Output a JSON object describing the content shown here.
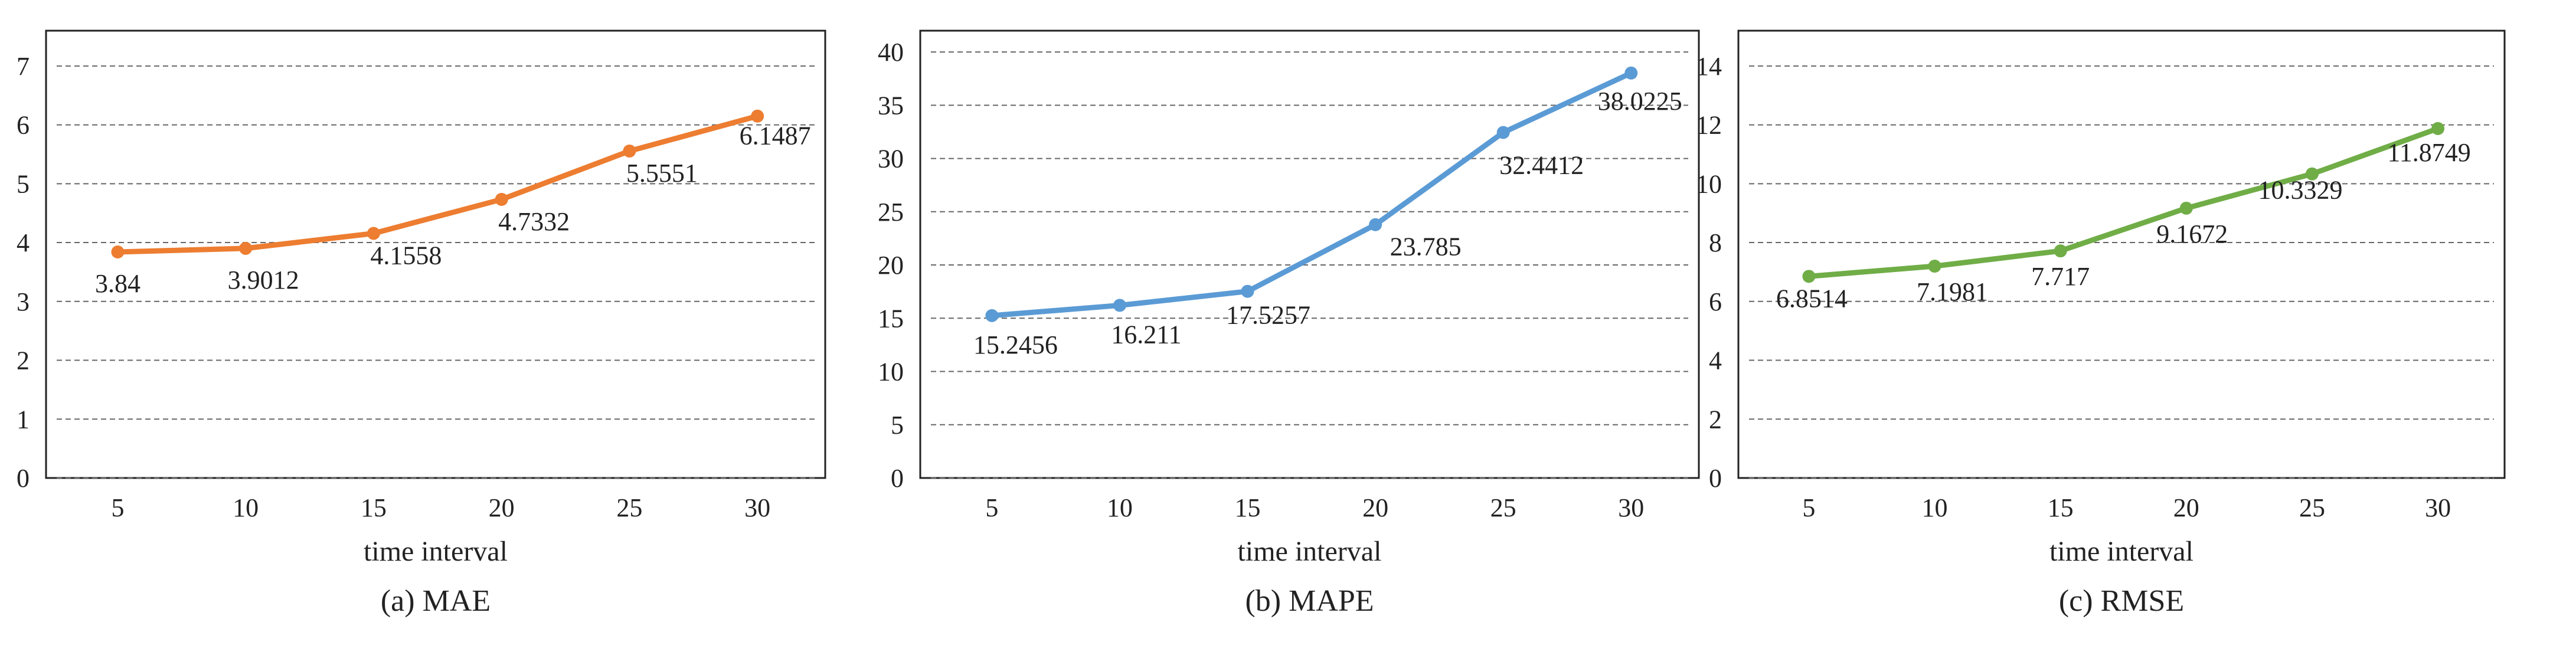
{
  "chart_data": [
    {
      "type": "line",
      "caption": "(a)  MAE",
      "xlabel": "time interval",
      "ylabel": "",
      "color": "#ed7d31",
      "x": [
        5,
        10,
        15,
        20,
        25,
        30
      ],
      "values": [
        3.84,
        3.9012,
        4.1558,
        4.7332,
        5.5551,
        6.1487
      ],
      "data_labels": [
        "3.84",
        "3.9012",
        "4.1558",
        "4.7332",
        "5.5551",
        "6.1487"
      ],
      "x_ticks": [
        "5",
        "10",
        "15",
        "20",
        "25",
        "30"
      ],
      "y_ticks": [
        0,
        1,
        2,
        3,
        4,
        5,
        6,
        7
      ],
      "ylim": [
        0,
        7.6
      ],
      "grid": "horizontal dashed",
      "legend": "none"
    },
    {
      "type": "line",
      "caption": "(b)  MAPE",
      "xlabel": "time interval",
      "ylabel": "",
      "color": "#5b9bd5",
      "x": [
        5,
        10,
        15,
        20,
        25,
        30
      ],
      "values": [
        15.2456,
        16.211,
        17.5257,
        23.785,
        32.4412,
        38.0225
      ],
      "data_labels": [
        "15.2456",
        "16.211",
        "17.5257",
        "23.785",
        "32.4412",
        "38.0225"
      ],
      "x_ticks": [
        "5",
        "10",
        "15",
        "20",
        "25",
        "30"
      ],
      "y_ticks": [
        0,
        5,
        10,
        15,
        20,
        25,
        30,
        35,
        40
      ],
      "ylim": [
        0,
        42
      ],
      "grid": "horizontal dashed",
      "legend": "none"
    },
    {
      "type": "line",
      "caption": "(c)  RMSE",
      "xlabel": "time interval",
      "ylabel": "",
      "color": "#70ad47",
      "x": [
        5,
        10,
        15,
        20,
        25,
        30
      ],
      "values": [
        6.8514,
        7.1981,
        7.717,
        9.1672,
        10.3329,
        11.8749
      ],
      "data_labels": [
        "6.8514",
        "7.1981",
        "7.717",
        "9.1672",
        "10.3329",
        "11.8749"
      ],
      "x_ticks": [
        "5",
        "10",
        "15",
        "20",
        "25",
        "30"
      ],
      "y_ticks": [
        0,
        2,
        4,
        6,
        8,
        10,
        12,
        14
      ],
      "ylim": [
        0,
        15.2
      ],
      "grid": "horizontal dashed",
      "legend": "none"
    }
  ]
}
